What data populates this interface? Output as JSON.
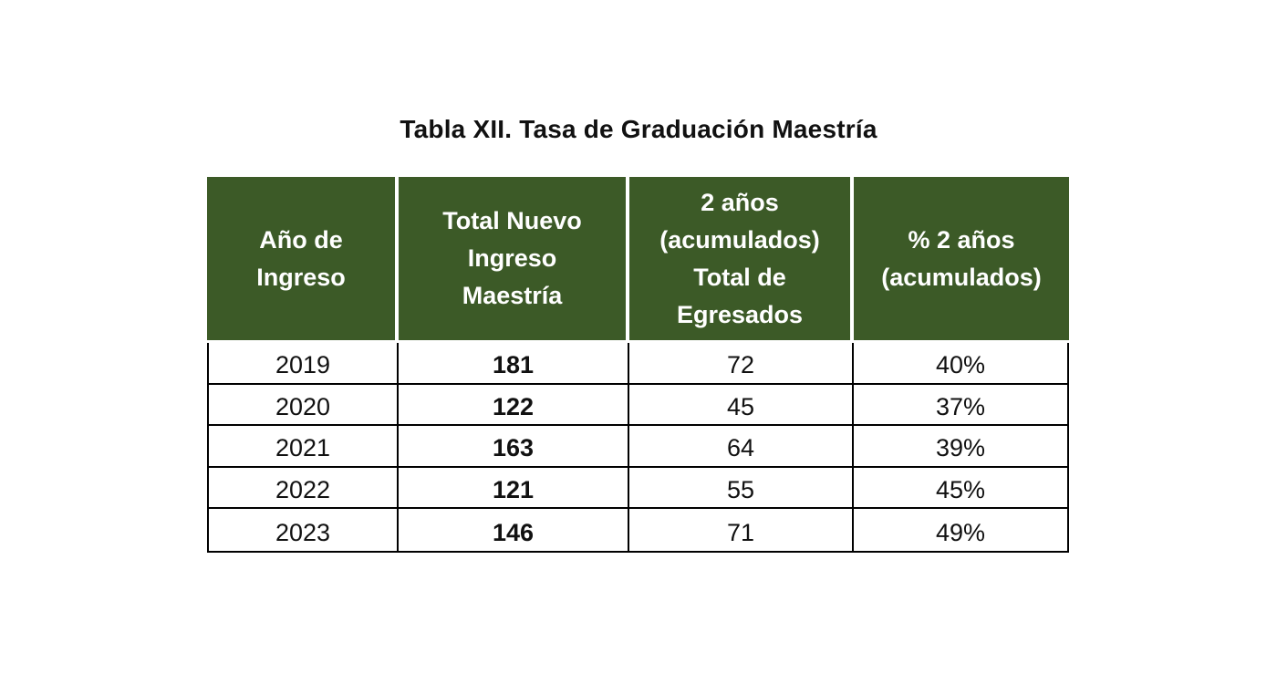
{
  "title": "Tabla XII. Tasa de Graduación Maestría",
  "colors": {
    "header_bg": "#3c5a27",
    "header_text": "#ffffff",
    "border": "#000000"
  },
  "table": {
    "headers": [
      "Año de\nIngreso",
      "Total Nuevo\nIngreso\nMaestría",
      "2 años\n(acumulados)\nTotal de\nEgresados",
      "%  2 años\n(acumulados)"
    ],
    "rows": [
      {
        "year": "2019",
        "total": "181",
        "egresados": "72",
        "pct": "40%"
      },
      {
        "year": "2020",
        "total": "122",
        "egresados": "45",
        "pct": "37%"
      },
      {
        "year": "2021",
        "total": "163",
        "egresados": "64",
        "pct": "39%"
      },
      {
        "year": "2022",
        "total": "121",
        "egresados": "55",
        "pct": "45%"
      },
      {
        "year": "2023",
        "total": "146",
        "egresados": "71",
        "pct": "49%"
      }
    ]
  }
}
